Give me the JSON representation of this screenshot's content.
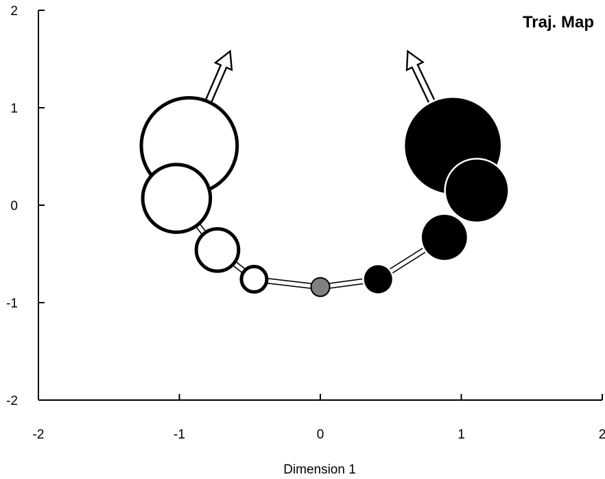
{
  "chart_data": {
    "type": "scatter",
    "title": "Traj. Map",
    "xlabel": "Dimension  1",
    "ylabel": "",
    "xlim": [
      -2,
      2
    ],
    "ylim": [
      -2,
      2
    ],
    "x_ticks": [
      "-2",
      "-1",
      "0",
      "1",
      "2"
    ],
    "y_ticks": [
      "-2",
      "-1",
      "0",
      "1",
      "2"
    ],
    "grid": false,
    "legend": "none",
    "colors": {
      "open": "#ffffff",
      "filled": "#000000",
      "stroke": "#000000",
      "origin": "#808080"
    },
    "origin_point": {
      "x": 0.0,
      "y": -0.84,
      "size": 0.03
    },
    "series": [
      {
        "fill": "open",
        "points": [
          {
            "x": -0.47,
            "y": -0.76,
            "size": 0.09
          },
          {
            "x": -0.73,
            "y": -0.46,
            "size": 0.15
          },
          {
            "x": -1.02,
            "y": 0.07,
            "size": 0.24
          },
          {
            "x": -0.93,
            "y": 0.61,
            "size": 0.34
          }
        ],
        "arrow_to": {
          "x": -0.64,
          "y": 1.58
        }
      },
      {
        "fill": "filled",
        "points": [
          {
            "x": 0.41,
            "y": -0.76,
            "size": 0.1
          },
          {
            "x": 0.88,
            "y": -0.33,
            "size": 0.16
          },
          {
            "x": 1.11,
            "y": 0.15,
            "size": 0.22
          },
          {
            "x": 0.94,
            "y": 0.61,
            "size": 0.34
          }
        ],
        "arrow_to": {
          "x": 0.62,
          "y": 1.58
        }
      }
    ]
  }
}
